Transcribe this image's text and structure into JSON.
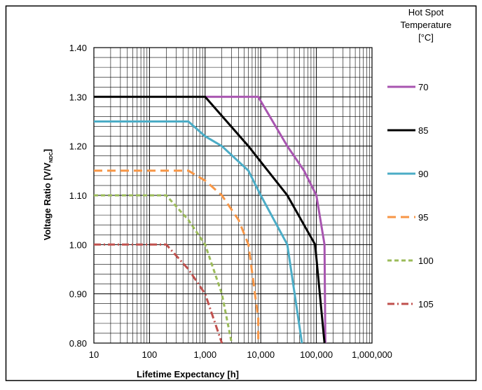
{
  "chart_data": {
    "type": "line",
    "xscale": "log",
    "xlim": [
      10,
      1000000
    ],
    "ylim": [
      0.8,
      1.4
    ],
    "x_ticks": [
      "10",
      "100",
      "1,000",
      "10,000",
      "100,000",
      "1,000,000"
    ],
    "y_ticks": [
      "0.80",
      "0.90",
      "1.00",
      "1.10",
      "1.20",
      "1.30",
      "1.40"
    ],
    "xlabel": "Lifetime Expectancy [h]",
    "ylabel_main": "Voltage Ratio [V/V",
    "ylabel_sub": "NDC",
    "ylabel_end": "]",
    "legend_title": [
      "Hot Spot",
      "Temperature",
      "[°C]"
    ],
    "legend_position": "right",
    "grid": true,
    "series": [
      {
        "name": "70",
        "color": "#a855b0",
        "dash": "solid",
        "points": [
          [
            1000,
            1.3
          ],
          [
            9000,
            1.3
          ],
          [
            30000,
            1.2
          ],
          [
            60000,
            1.15
          ],
          [
            100000,
            1.1
          ],
          [
            140000,
            1.0
          ],
          [
            145000,
            0.8
          ]
        ]
      },
      {
        "name": "85",
        "color": "#000000",
        "dash": "solid",
        "points": [
          [
            10,
            1.3
          ],
          [
            1000,
            1.3
          ],
          [
            6000,
            1.2
          ],
          [
            30000,
            1.1
          ],
          [
            95000,
            1.0
          ],
          [
            140000,
            0.8
          ]
        ]
      },
      {
        "name": "90",
        "color": "#4bacc6",
        "dash": "solid",
        "points": [
          [
            10,
            1.25
          ],
          [
            500,
            1.25
          ],
          [
            1000,
            1.22
          ],
          [
            2000,
            1.2
          ],
          [
            6000,
            1.15
          ],
          [
            10000,
            1.1
          ],
          [
            30000,
            1.0
          ],
          [
            55000,
            0.8
          ]
        ]
      },
      {
        "name": "95",
        "color": "#f79646",
        "dash": "dash",
        "points": [
          [
            10,
            1.15
          ],
          [
            500,
            1.15
          ],
          [
            1000,
            1.13
          ],
          [
            2000,
            1.1
          ],
          [
            4000,
            1.05
          ],
          [
            6000,
            1.0
          ],
          [
            9000,
            0.85
          ],
          [
            9000,
            0.8
          ]
        ]
      },
      {
        "name": "100",
        "color": "#9bbb59",
        "dash": "shortdash",
        "points": [
          [
            10,
            1.1
          ],
          [
            200,
            1.1
          ],
          [
            500,
            1.05
          ],
          [
            1000,
            1.0
          ],
          [
            2000,
            0.9
          ],
          [
            3000,
            0.8
          ]
        ]
      },
      {
        "name": "105",
        "color": "#c0504d",
        "dash": "dashdot",
        "points": [
          [
            10,
            1.0
          ],
          [
            200,
            1.0
          ],
          [
            500,
            0.95
          ],
          [
            1000,
            0.9
          ],
          [
            2000,
            0.8
          ]
        ]
      }
    ]
  }
}
